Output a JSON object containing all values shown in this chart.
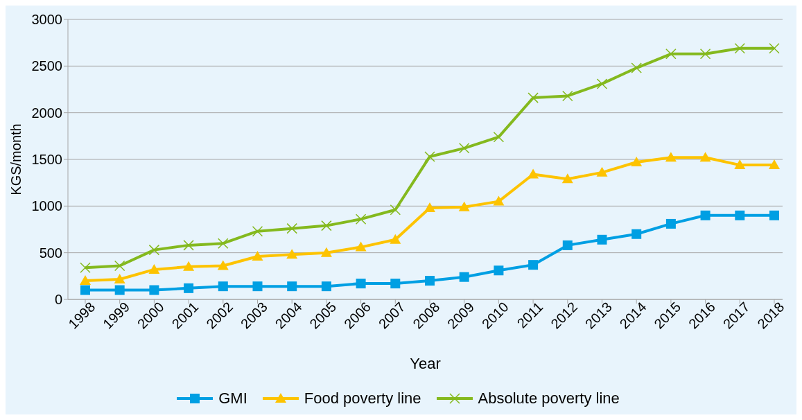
{
  "chart_data": {
    "type": "line",
    "xlabel": "Year",
    "ylabel": "KGS/month",
    "categories": [
      "1998",
      "1999",
      "2000",
      "2001",
      "2002",
      "2003",
      "2004",
      "2005",
      "2006",
      "2007",
      "2008",
      "2009",
      "2010",
      "2011",
      "2012",
      "2013",
      "2014",
      "2015",
      "2016",
      "2017",
      "2018"
    ],
    "series": [
      {
        "name": "GMI",
        "color": "#009fe3",
        "marker": "square",
        "values": [
          100,
          100,
          100,
          120,
          140,
          140,
          140,
          140,
          170,
          170,
          200,
          240,
          310,
          370,
          580,
          640,
          700,
          810,
          900,
          900,
          900
        ]
      },
      {
        "name": "Food poverty line",
        "color": "#fdc300",
        "marker": "triangle",
        "values": [
          200,
          215,
          320,
          350,
          360,
          460,
          480,
          500,
          560,
          640,
          980,
          990,
          1050,
          1340,
          1290,
          1360,
          1470,
          1520,
          1520,
          1440,
          1440
        ]
      },
      {
        "name": "Absolute poverty line",
        "color": "#84b91e",
        "marker": "cross",
        "values": [
          340,
          360,
          530,
          580,
          600,
          730,
          760,
          790,
          860,
          960,
          1530,
          1620,
          1740,
          2160,
          2180,
          2310,
          2480,
          2630,
          2630,
          2690,
          2690
        ]
      }
    ],
    "ylim": [
      0,
      3000
    ],
    "yticks": [
      0,
      500,
      1000,
      1500,
      2000,
      2500,
      3000
    ],
    "grid": "y",
    "legend": "bottom",
    "line_style": "solid"
  }
}
